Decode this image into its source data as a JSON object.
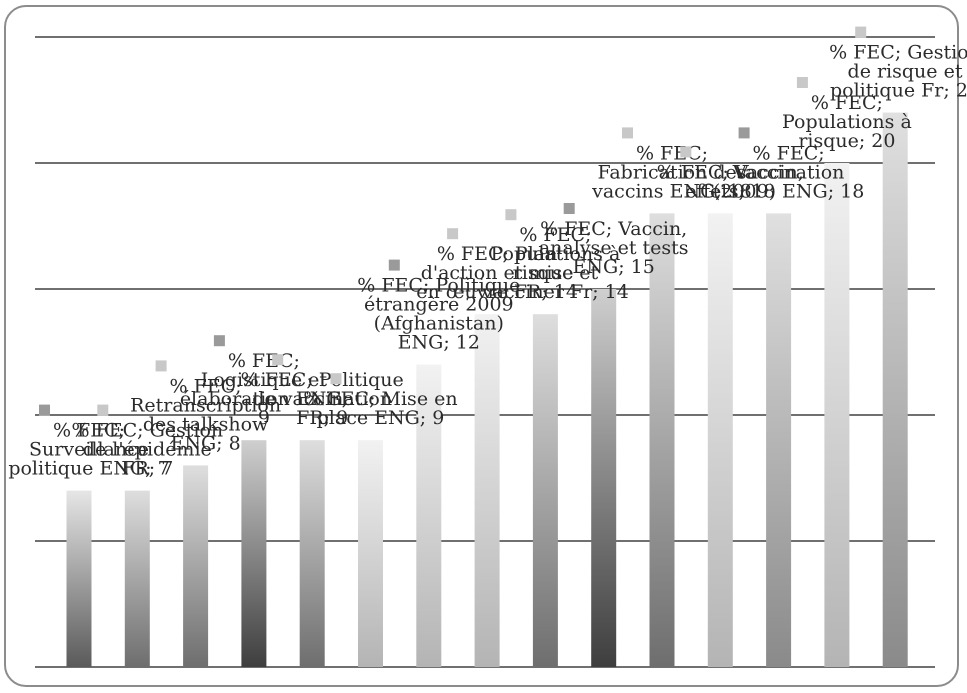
{
  "chart_data": {
    "type": "bar",
    "title": "",
    "xlabel": "",
    "ylabel": "",
    "ylim": [
      0,
      25
    ],
    "grid": true,
    "legend": "none",
    "series": [
      {
        "name": "% FEC",
        "values": [
          7,
          7,
          8,
          9,
          9,
          9,
          12,
          14,
          14,
          15,
          18,
          18,
          18,
          20,
          22
        ],
        "categories": [
          "Surveillance",
          "Gestion de l'épidémie FR",
          "Retranscription des talkshow ENG",
          "Logistique et élaboration ENG",
          "Politique de vaccination FR",
          "Mise en place ENG",
          "Politique étrangère 2009 (Afghanistan) ENG",
          "Plan d'action et mise en œuvre FR",
          "Populations à risque et vacciner Fr",
          "Vaccin, analyse et tests ENG",
          "Fabrication des vaccins ENG",
          "Vaccin, effets",
          "Vaccination (2009) ENG",
          "Populations à risque",
          "Gestion de risque et politique Fr"
        ],
        "labels": [
          "% FEC; Surveillance politique ENG; 7",
          "% FEC; Gestion de l'épidémie FR; 7",
          "% FEC; Retranscription des talkshow ENG; 8",
          "% FEC; Logistique et élaboration ENG; 9",
          "% FEC; Politique de vaccination FR; 9",
          "% FEC; Mise en place ENG; 9",
          "% FEC; Politique étrangère 2009 (Afghanistan) ENG; 12",
          "% FEC; Plan d'action et mise en œuvre FR; 14",
          "% FEC; Populations à risque et vacciner Fr; 14",
          "% FEC; Vaccin, analyse et tests ENG; 15",
          "% FEC; Fabrication des vaccins ENG; 18",
          "% FEC; Vaccin, effets; 18",
          "% FEC; Vaccination (2009) ENG; 18",
          "% FEC; Populations à risque; 20",
          "% FEC; Gestion de risque et politique Fr; 22"
        ]
      }
    ]
  }
}
